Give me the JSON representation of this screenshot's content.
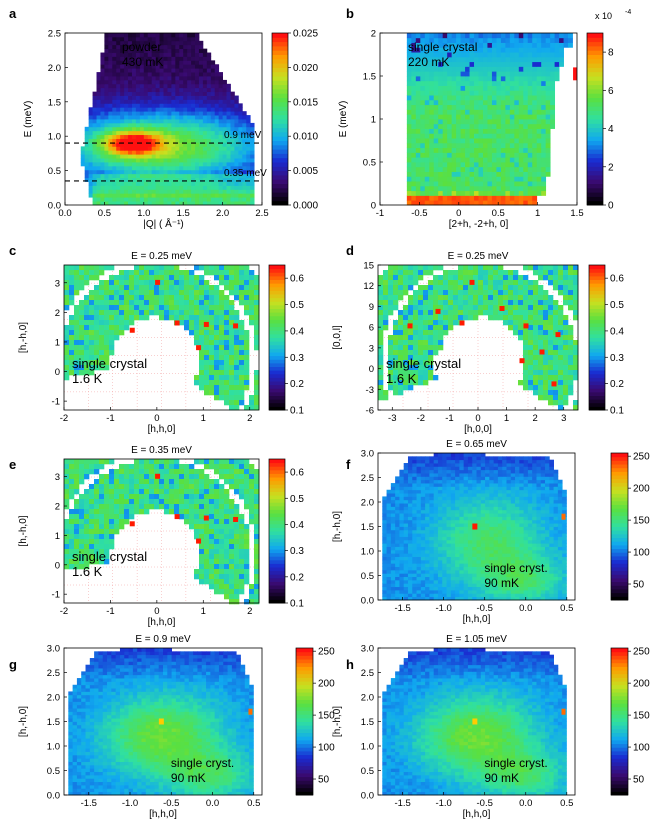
{
  "chart_data": [
    {
      "id": "a",
      "type": "heatmap",
      "panel_label": "a",
      "title": "",
      "xlabel": "|Q| ( Å⁻¹)",
      "ylabel": "E (meV)",
      "xlim": [
        0.0,
        2.5
      ],
      "ylim": [
        0.0,
        2.5
      ],
      "xticks": [
        "0.0",
        "0.5",
        "1.0",
        "1.5",
        "2.0",
        "2.5"
      ],
      "yticks": [
        "0.0",
        "0.5",
        "1.0",
        "1.5",
        "2.0",
        "2.5"
      ],
      "annotations": [
        "powder",
        "430 mK"
      ],
      "cut_lines": [
        {
          "label": "0.9 meV",
          "E": 0.9
        },
        {
          "label": "0.35 meV",
          "E": 0.35
        }
      ],
      "colorbar": {
        "ticks": [
          "0.000",
          "0.005",
          "0.010",
          "0.015",
          "0.020",
          "0.025"
        ],
        "range": [
          0.0,
          0.025
        ],
        "scale": "",
        "exponent": ""
      }
    },
    {
      "id": "b",
      "type": "heatmap",
      "panel_label": "b",
      "title": "",
      "xlabel": "[2+h, -2+h, 0]",
      "ylabel": "E (meV)",
      "xlim": [
        -1.0,
        1.5
      ],
      "ylim": [
        0.0,
        2.0
      ],
      "xticks": [
        "-1",
        "-0.5",
        "0",
        "0.5",
        "1",
        "1.5"
      ],
      "yticks": [
        "0",
        "0.5",
        "1",
        "1.5",
        "2"
      ],
      "annotations": [
        "single crystal",
        "220 mK"
      ],
      "colorbar": {
        "ticks": [
          "0",
          "2",
          "4",
          "6",
          "8"
        ],
        "range": [
          0,
          9
        ],
        "scale": "x 10",
        "exponent": "-4"
      }
    },
    {
      "id": "c",
      "type": "heatmap",
      "panel_label": "c",
      "title": "E = 0.25 meV",
      "xlabel": "[h,h,0]",
      "ylabel": "[h,-h,0]",
      "xlim": [
        -2,
        2.2
      ],
      "ylim": [
        -1.3,
        3.6
      ],
      "xticks": [
        "-2",
        "-1",
        "0",
        "1",
        "2"
      ],
      "yticks": [
        "-1",
        "0",
        "1",
        "2",
        "3"
      ],
      "annotations": [
        "single crystal",
        "1.6 K"
      ],
      "colorbar": {
        "ticks": [
          "0.1",
          "0.2",
          "0.3",
          "0.4",
          "0.5",
          "0.6"
        ],
        "range": [
          0.1,
          0.65
        ],
        "scale": "",
        "exponent": ""
      }
    },
    {
      "id": "d",
      "type": "heatmap",
      "panel_label": "d",
      "title": "E = 0.25 meV",
      "xlabel": "[h,0,0]",
      "ylabel": "[0,0,l]",
      "xlim": [
        -3.5,
        3.5
      ],
      "ylim": [
        -6,
        15
      ],
      "xticks": [
        "-3",
        "-2",
        "-1",
        "0",
        "1",
        "2",
        "3"
      ],
      "yticks": [
        "-6",
        "-3",
        "0",
        "3",
        "6",
        "9",
        "12",
        "15"
      ],
      "annotations": [
        "single crystal",
        "1.6 K"
      ],
      "colorbar": {
        "ticks": [
          "0.1",
          "0.2",
          "0.3",
          "0.4",
          "0.5",
          "0.6"
        ],
        "range": [
          0.1,
          0.65
        ],
        "scale": "",
        "exponent": ""
      }
    },
    {
      "id": "e",
      "type": "heatmap",
      "panel_label": "e",
      "title": "E = 0.35 meV",
      "xlabel": "[h,h,0]",
      "ylabel": "[h,-h,0]",
      "xlim": [
        -2,
        2.2
      ],
      "ylim": [
        -1.3,
        3.6
      ],
      "xticks": [
        "-2",
        "-1",
        "0",
        "1",
        "2"
      ],
      "yticks": [
        "-1",
        "0",
        "1",
        "2",
        "3"
      ],
      "annotations": [
        "single crystal",
        "1.6 K"
      ],
      "colorbar": {
        "ticks": [
          "0.1",
          "0.2",
          "0.3",
          "0.4",
          "0.5",
          "0.6"
        ],
        "range": [
          0.1,
          0.65
        ],
        "scale": "",
        "exponent": ""
      }
    },
    {
      "id": "f",
      "type": "heatmap",
      "panel_label": "f",
      "title": "E = 0.65 meV",
      "xlabel": "[h,h,0]",
      "ylabel": "[h,-h,0]",
      "xlim": [
        -1.8,
        0.6
      ],
      "ylim": [
        0.0,
        3.0
      ],
      "xticks": [
        "-1.5",
        "-1.0",
        "-0.5",
        "0.0",
        "0.5"
      ],
      "yticks": [
        "0.0",
        "0.5",
        "1.0",
        "1.5",
        "2.0",
        "2.5",
        "3.0"
      ],
      "annotations": [
        "single cryst.",
        "90 mK"
      ],
      "colorbar": {
        "ticks": [
          "50",
          "100",
          "150",
          "200",
          "250"
        ],
        "range": [
          25,
          255
        ],
        "scale": "",
        "exponent": ""
      }
    },
    {
      "id": "g",
      "type": "heatmap",
      "panel_label": "g",
      "title": "E = 0.9 meV",
      "xlabel": "[h,h,0]",
      "ylabel": "[h,-h,0]",
      "xlim": [
        -1.8,
        0.6
      ],
      "ylim": [
        0.0,
        3.0
      ],
      "xticks": [
        "-1.5",
        "-1.0",
        "-0.5",
        "0.0",
        "0.5"
      ],
      "yticks": [
        "0.0",
        "0.5",
        "1.0",
        "1.5",
        "2.0",
        "2.5",
        "3.0"
      ],
      "annotations": [
        "single cryst.",
        "90 mK"
      ],
      "colorbar": {
        "ticks": [
          "50",
          "100",
          "150",
          "200",
          "250"
        ],
        "range": [
          25,
          255
        ],
        "scale": "",
        "exponent": ""
      }
    },
    {
      "id": "h",
      "type": "heatmap",
      "panel_label": "h",
      "title": "E = 1.05 meV",
      "xlabel": "[h,h,0]",
      "ylabel": "[h,-h,0]",
      "xlim": [
        -1.8,
        0.6
      ],
      "ylim": [
        0.0,
        3.0
      ],
      "xticks": [
        "-1.5",
        "-1.0",
        "-0.5",
        "0.0",
        "0.5"
      ],
      "yticks": [
        "0.0",
        "0.5",
        "1.0",
        "1.5",
        "2.0",
        "2.5",
        "3.0"
      ],
      "annotations": [
        "single cryst.",
        "90 mK"
      ],
      "colorbar": {
        "ticks": [
          "50",
          "100",
          "150",
          "200",
          "250"
        ],
        "range": [
          25,
          255
        ],
        "scale": "",
        "exponent": ""
      }
    }
  ],
  "colors": {
    "colormap": [
      "#000000",
      "#3a0a70",
      "#1a2ad0",
      "#10a8f0",
      "#30e0a0",
      "#5ae040",
      "#c8e020",
      "#ff9a00",
      "#ff1010"
    ],
    "cut_line": "#000000",
    "annotation_text": "#ffffff"
  }
}
